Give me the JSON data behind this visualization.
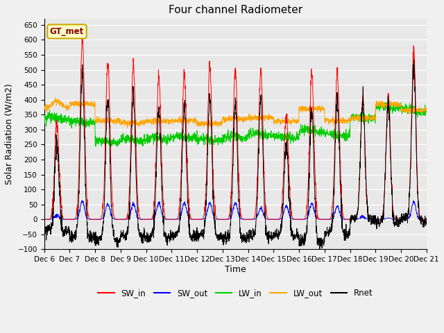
{
  "title": "Four channel Radiometer",
  "xlabel": "Time",
  "ylabel": "Solar Radiation (W/m2)",
  "annotation": "GT_met",
  "ylim": [
    -100,
    670
  ],
  "yticks": [
    -100,
    -50,
    0,
    50,
    100,
    150,
    200,
    250,
    300,
    350,
    400,
    450,
    500,
    550,
    600,
    650
  ],
  "line_colors": {
    "SW_in": "#ff0000",
    "SW_out": "#0000ff",
    "LW_in": "#00cc00",
    "LW_out": "#ffa500",
    "Rnet": "#000000"
  },
  "x_tick_labels": [
    "Dec 6",
    "Dec 7",
    "Dec 8",
    "Dec 9",
    "Dec 10",
    "Dec 11",
    "Dec 12",
    "Dec 13",
    "Dec 14",
    "Dec 15",
    "Dec 16",
    "Dec 17",
    "Dec 18",
    "Dec 19",
    "Dec 20",
    "Dec 21"
  ],
  "title_fontsize": 11,
  "axis_label_fontsize": 9,
  "tick_fontsize": 7.5,
  "fig_bg": "#f0f0f0",
  "plot_bg": "#e8e8e8",
  "grid_color": "#ffffff",
  "annotation_fg": "#8B0000",
  "annotation_bg": "#ffffcc",
  "annotation_edge": "#ccaa00"
}
